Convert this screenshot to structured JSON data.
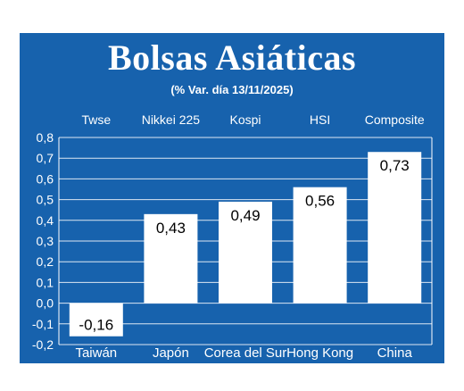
{
  "header": {
    "title": "Bolsas Asiáticas",
    "subtitle": "(% Var. día  13/11/2025)"
  },
  "colors": {
    "background": "#1762ad",
    "bar": "#ffffff",
    "text": "#ffffff",
    "label_text": "#000000"
  },
  "chart_data": {
    "type": "bar",
    "title": "Bolsas Asiáticas",
    "subtitle": "(% Var. día  13/11/2025)",
    "categories": [
      "Taiwán",
      "Japón",
      "Corea del Sur",
      "Hong Kong",
      "China"
    ],
    "index_names": [
      "Twse",
      "Nikkei 225",
      "Kospi",
      "HSI",
      "Composite"
    ],
    "values": [
      -0.16,
      0.43,
      0.49,
      0.56,
      0.73
    ],
    "value_labels": [
      "-0,16",
      "0,43",
      "0,49",
      "0,56",
      "0,73"
    ],
    "ylim": [
      -0.2,
      0.8
    ],
    "yticks": [
      "-0,2",
      "-0,1",
      "0,0",
      "0,1",
      "0,2",
      "0,3",
      "0,4",
      "0,5",
      "0,6",
      "0,7",
      "0,8"
    ],
    "grid": true,
    "legend": "none"
  }
}
